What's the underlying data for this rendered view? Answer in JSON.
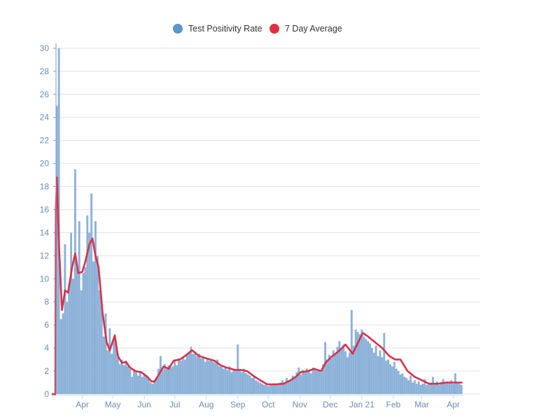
{
  "chart_data": {
    "type": "bar",
    "title": "",
    "xlabel": "",
    "ylabel": "",
    "x_unit": "days since Mar 2, 2020",
    "xlim": [
      0,
      405
    ],
    "ylim": [
      0,
      30
    ],
    "yticks": [
      0,
      2,
      4,
      6,
      8,
      10,
      12,
      14,
      16,
      18,
      20,
      22,
      24,
      26,
      28,
      30
    ],
    "xticks": [
      {
        "day": 30,
        "label": "Apr"
      },
      {
        "day": 60,
        "label": "May"
      },
      {
        "day": 91,
        "label": "Jun"
      },
      {
        "day": 121,
        "label": "Jul"
      },
      {
        "day": 152,
        "label": "Aug"
      },
      {
        "day": 183,
        "label": "Sep"
      },
      {
        "day": 213,
        "label": "Oct"
      },
      {
        "day": 244,
        "label": "Nov"
      },
      {
        "day": 274,
        "label": "Dec"
      },
      {
        "day": 305,
        "label": "Jan 21"
      },
      {
        "day": 336,
        "label": "Feb"
      },
      {
        "day": 364,
        "label": "Mar"
      },
      {
        "day": 395,
        "label": "Apr"
      }
    ],
    "grid": true,
    "legend_position": "top-center",
    "series": [
      {
        "name": "Test Positivity Rate",
        "type": "bar",
        "color": "#8db2d8",
        "legend_color": "#5b95cb",
        "start_day": 0,
        "step_days": 2,
        "values": [
          0,
          0,
          25,
          30,
          6.5,
          7,
          13,
          8,
          9.5,
          14,
          10,
          19.5,
          11,
          15,
          9,
          10.5,
          11,
          15.5,
          14,
          17.4,
          11.5,
          15,
          12,
          9,
          8,
          5,
          7,
          3.8,
          5.7,
          3.5,
          4.8,
          4.5,
          3.2,
          2.6,
          3,
          2.5,
          2.9,
          2.4,
          2.2,
          1.5,
          2.2,
          1.9,
          1.6,
          1.9,
          1.5,
          1.8,
          1.5,
          1.3,
          1.0,
          0.9,
          1.2,
          1.4,
          2.2,
          3.3,
          2.1,
          2.6,
          2.2,
          2.5,
          2.3,
          2.4,
          3.0,
          2.5,
          3.1,
          2.9,
          3.2,
          3.0,
          3.4,
          3.6,
          4.1,
          3.5,
          3.7,
          3.3,
          3.5,
          3.1,
          3.2,
          2.8,
          3.1,
          2.9,
          3.0,
          2.8,
          2.7,
          3.0,
          2.4,
          2.5,
          2.2,
          2.3,
          2.1,
          2.4,
          1.9,
          2.2,
          2.0,
          4.3,
          2.1,
          1.9,
          2.2,
          1.8,
          1.7,
          1.6,
          1.4,
          1.5,
          1.2,
          1.1,
          1.0,
          0.9,
          0.8,
          0.9,
          0.7,
          0.8,
          0.9,
          0.8,
          0.9,
          0.8,
          1.0,
          1.2,
          0.9,
          1.4,
          1.1,
          1.3,
          1.6,
          1.5,
          1.9,
          2.3,
          1.7,
          2.1,
          1.9,
          2.2,
          2.0,
          1.8,
          2.3,
          2.2,
          2.0,
          2.1,
          1.9,
          2.6,
          4.5,
          3.0,
          3.4,
          3.1,
          3.8,
          3.5,
          4.1,
          4.6,
          3.9,
          4.3,
          3.7,
          3.2,
          3.6,
          7.3,
          4.2,
          5.6,
          5.4,
          5.2,
          5.6,
          5.0,
          4.8,
          4.6,
          4.4,
          4.0,
          3.6,
          4.2,
          3.3,
          3.8,
          3.2,
          5.3,
          2.9,
          3.0,
          2.6,
          2.4,
          2.8,
          2.2,
          2.0,
          1.7,
          1.8,
          1.5,
          1.4,
          1.2,
          1.6,
          1.0,
          1.2,
          0.9,
          1.1,
          0.8,
          0.9,
          1.3,
          0.8,
          0.9,
          1.0,
          1.5,
          0.9,
          1.1,
          0.8,
          1.0,
          1.3,
          0.9,
          1.1,
          1.0,
          1.2,
          0.9,
          1.8,
          1.0,
          0.9,
          0.8
        ]
      },
      {
        "name": "7 Day Average",
        "type": "line",
        "color": "#d7314a",
        "legend_color": "#e2303f",
        "points": [
          [
            0,
            0
          ],
          [
            3.5,
            0
          ],
          [
            4,
            16
          ],
          [
            5,
            18.8
          ],
          [
            7,
            13
          ],
          [
            10,
            7.3
          ],
          [
            13,
            9
          ],
          [
            16,
            8.8
          ],
          [
            20,
            11
          ],
          [
            23,
            12.2
          ],
          [
            26,
            10.5
          ],
          [
            30,
            10.6
          ],
          [
            33,
            11.5
          ],
          [
            37,
            13
          ],
          [
            40,
            13.5
          ],
          [
            43,
            12
          ],
          [
            46,
            11
          ],
          [
            50,
            7
          ],
          [
            54,
            4.5
          ],
          [
            57,
            3.8
          ],
          [
            62,
            5.1
          ],
          [
            65,
            3.3
          ],
          [
            69,
            2.7
          ],
          [
            73,
            2.8
          ],
          [
            77,
            2.3
          ],
          [
            82,
            2.0
          ],
          [
            88,
            1.9
          ],
          [
            94,
            1.5
          ],
          [
            98,
            1.1
          ],
          [
            101,
            1.1
          ],
          [
            106,
            1.8
          ],
          [
            110,
            2.4
          ],
          [
            115,
            2.2
          ],
          [
            120,
            2.9
          ],
          [
            126,
            3.0
          ],
          [
            131,
            3.3
          ],
          [
            138,
            3.8
          ],
          [
            145,
            3.3
          ],
          [
            152,
            3.1
          ],
          [
            160,
            2.9
          ],
          [
            166,
            2.5
          ],
          [
            172,
            2.3
          ],
          [
            180,
            2.1
          ],
          [
            186,
            2.1
          ],
          [
            192,
            2.0
          ],
          [
            198,
            1.6
          ],
          [
            205,
            1.2
          ],
          [
            212,
            0.85
          ],
          [
            220,
            0.85
          ],
          [
            228,
            0.9
          ],
          [
            235,
            1.2
          ],
          [
            240,
            1.5
          ],
          [
            245,
            1.9
          ],
          [
            252,
            2.0
          ],
          [
            258,
            2.2
          ],
          [
            265,
            2.0
          ],
          [
            270,
            2.8
          ],
          [
            276,
            3.3
          ],
          [
            282,
            3.7
          ],
          [
            289,
            4.3
          ],
          [
            296,
            3.5
          ],
          [
            302,
            4.6
          ],
          [
            306,
            5.3
          ],
          [
            311,
            5.0
          ],
          [
            318,
            4.5
          ],
          [
            325,
            4.0
          ],
          [
            332,
            3.3
          ],
          [
            338,
            3.0
          ],
          [
            343,
            3.0
          ],
          [
            350,
            2.0
          ],
          [
            357,
            1.5
          ],
          [
            364,
            1.2
          ],
          [
            371,
            0.9
          ],
          [
            380,
            0.9
          ],
          [
            388,
            1.0
          ],
          [
            396,
            1.0
          ],
          [
            404,
            1.0
          ]
        ]
      }
    ]
  }
}
